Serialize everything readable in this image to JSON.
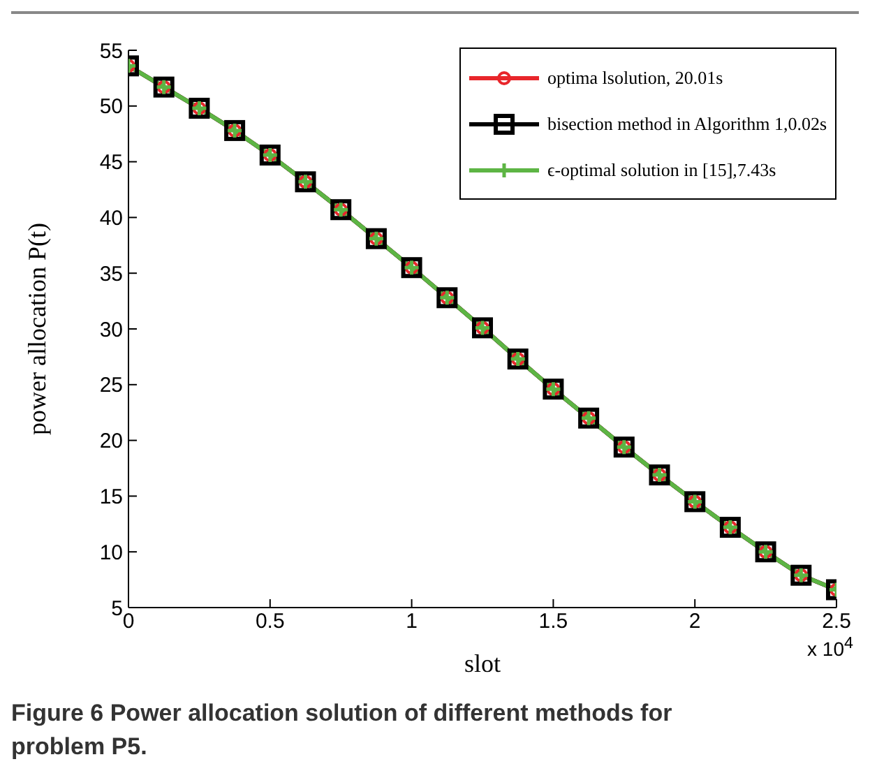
{
  "chart_data": {
    "type": "line",
    "xlabel": "slot",
    "ylabel": "power allocation P(t)",
    "x": [
      0,
      0.125,
      0.25,
      0.375,
      0.5,
      0.625,
      0.75,
      0.875,
      1,
      1.125,
      1.25,
      1.375,
      1.5,
      1.625,
      1.75,
      1.875,
      2,
      2.125,
      2.25,
      2.375,
      2.5
    ],
    "series": [
      {
        "name": "optima lsolution, 20.01s",
        "color": "#e8262b",
        "marker": "circle",
        "values": [
          53.6,
          51.7,
          49.8,
          47.8,
          45.6,
          43.2,
          40.7,
          38.1,
          35.5,
          32.8,
          30.1,
          27.3,
          24.6,
          22.0,
          19.4,
          16.9,
          14.5,
          12.2,
          10.0,
          7.9,
          6.6
        ]
      },
      {
        "name": "bisection method in Algorithm 1,0.02s",
        "color": "#000000",
        "marker": "square",
        "values": [
          53.6,
          51.7,
          49.8,
          47.8,
          45.6,
          43.2,
          40.7,
          38.1,
          35.5,
          32.8,
          30.1,
          27.3,
          24.6,
          22.0,
          19.4,
          16.9,
          14.5,
          12.2,
          10.0,
          7.9,
          6.6
        ]
      },
      {
        "name": "ϵ-optimal solution in [15],7.43s",
        "color": "#5db544",
        "marker": "cross",
        "values": [
          53.6,
          51.7,
          49.8,
          47.8,
          45.6,
          43.2,
          40.7,
          38.1,
          35.5,
          32.8,
          30.1,
          27.3,
          24.6,
          22.0,
          19.4,
          16.9,
          14.5,
          12.2,
          10.0,
          7.9,
          6.6
        ]
      }
    ],
    "xlim": [
      0,
      2.5
    ],
    "xticks": [
      0,
      0.5,
      1,
      1.5,
      2,
      2.5
    ],
    "ylim": [
      5,
      55
    ],
    "yticks": [
      5,
      10,
      15,
      20,
      25,
      30,
      35,
      40,
      45,
      50,
      55
    ],
    "grid": false,
    "legend": "top right",
    "line_style": "solid",
    "annotations": [
      "x 10$^{4}$",
      "Figure 6 Power allocation solution of different methods for problem P5."
    ]
  }
}
